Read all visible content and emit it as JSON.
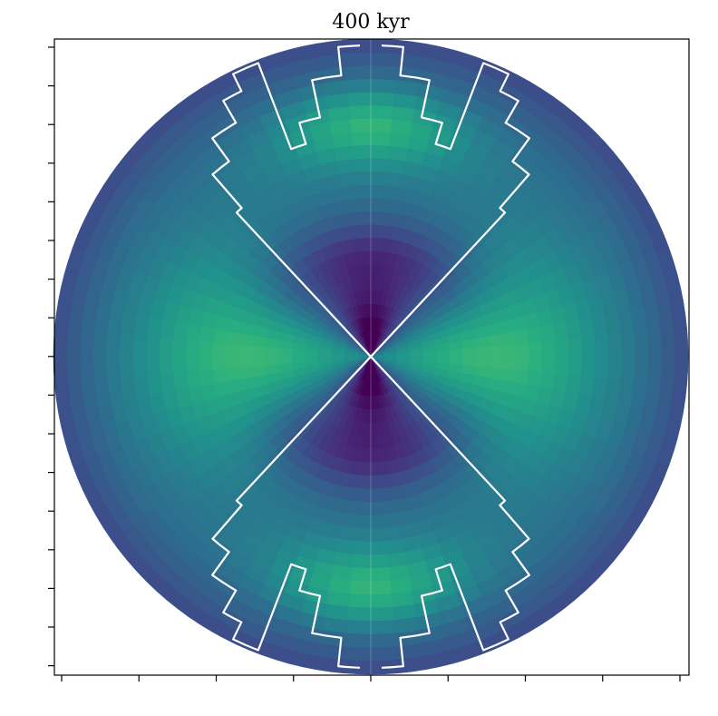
{
  "chart_data": {
    "type": "heatmap",
    "projection": "polar-meridional",
    "title": "400 kyr",
    "xlabel": "",
    "ylabel": "",
    "tick_labels_shown": false,
    "grid": false,
    "colormap": "viridis",
    "color_range": [
      0,
      1
    ],
    "radial_bins": 24,
    "angular_bins": 72,
    "boundary_color": "#ffffff",
    "boundary_radius_fractions": [
      [
        0.0,
        1.0
      ],
      [
        0.045,
        0.89
      ],
      [
        0.09,
        0.71
      ],
      [
        0.135,
        0.68
      ],
      [
        0.18,
        0.64
      ],
      [
        0.225,
        0.9
      ],
      [
        0.27,
        0.98
      ],
      [
        0.315,
        0.93
      ],
      [
        0.36,
        0.8
      ],
      [
        0.405,
        0.68
      ],
      [
        0.45,
        0.58
      ],
      [
        0.495,
        0.46
      ],
      [
        0.54,
        0.38
      ],
      [
        0.585,
        0.3
      ],
      [
        0.62,
        0.0
      ]
    ],
    "colors": {
      "low": "#440154",
      "mid": "#31688e",
      "high": "#21a784",
      "frame": "#000000"
    }
  }
}
